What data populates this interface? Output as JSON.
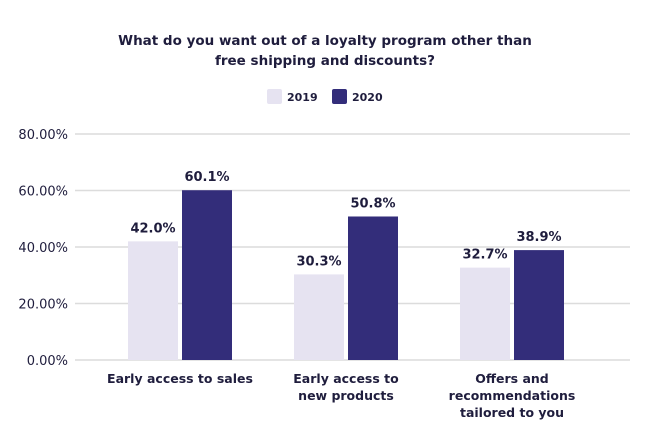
{
  "chart_data": {
    "type": "bar",
    "title": [
      "What do you want out of a loyalty program other than",
      "free shipping and discounts?"
    ],
    "categories": [
      [
        "Early access to sales"
      ],
      [
        "Early access to",
        "new products"
      ],
      [
        "Offers and",
        "recommendations",
        "tailored to you"
      ]
    ],
    "series": [
      {
        "name": "2019",
        "values": [
          42.0,
          30.3,
          32.7
        ],
        "labels": [
          "42.0%",
          "30.3%",
          "32.7%"
        ],
        "color": "#e6e3f1"
      },
      {
        "name": "2020",
        "values": [
          60.1,
          50.8,
          38.9
        ],
        "labels": [
          "60.1%",
          "50.8%",
          "38.9%"
        ],
        "color": "#332d7a"
      }
    ],
    "ylim": [
      0,
      80
    ],
    "yticks": [
      0,
      20,
      40,
      60,
      80
    ],
    "ytick_labels": [
      "0.00%",
      "20.00%",
      "40.00%",
      "60.00%",
      "80.00%"
    ],
    "grid": true,
    "legend_position": "top-center"
  }
}
